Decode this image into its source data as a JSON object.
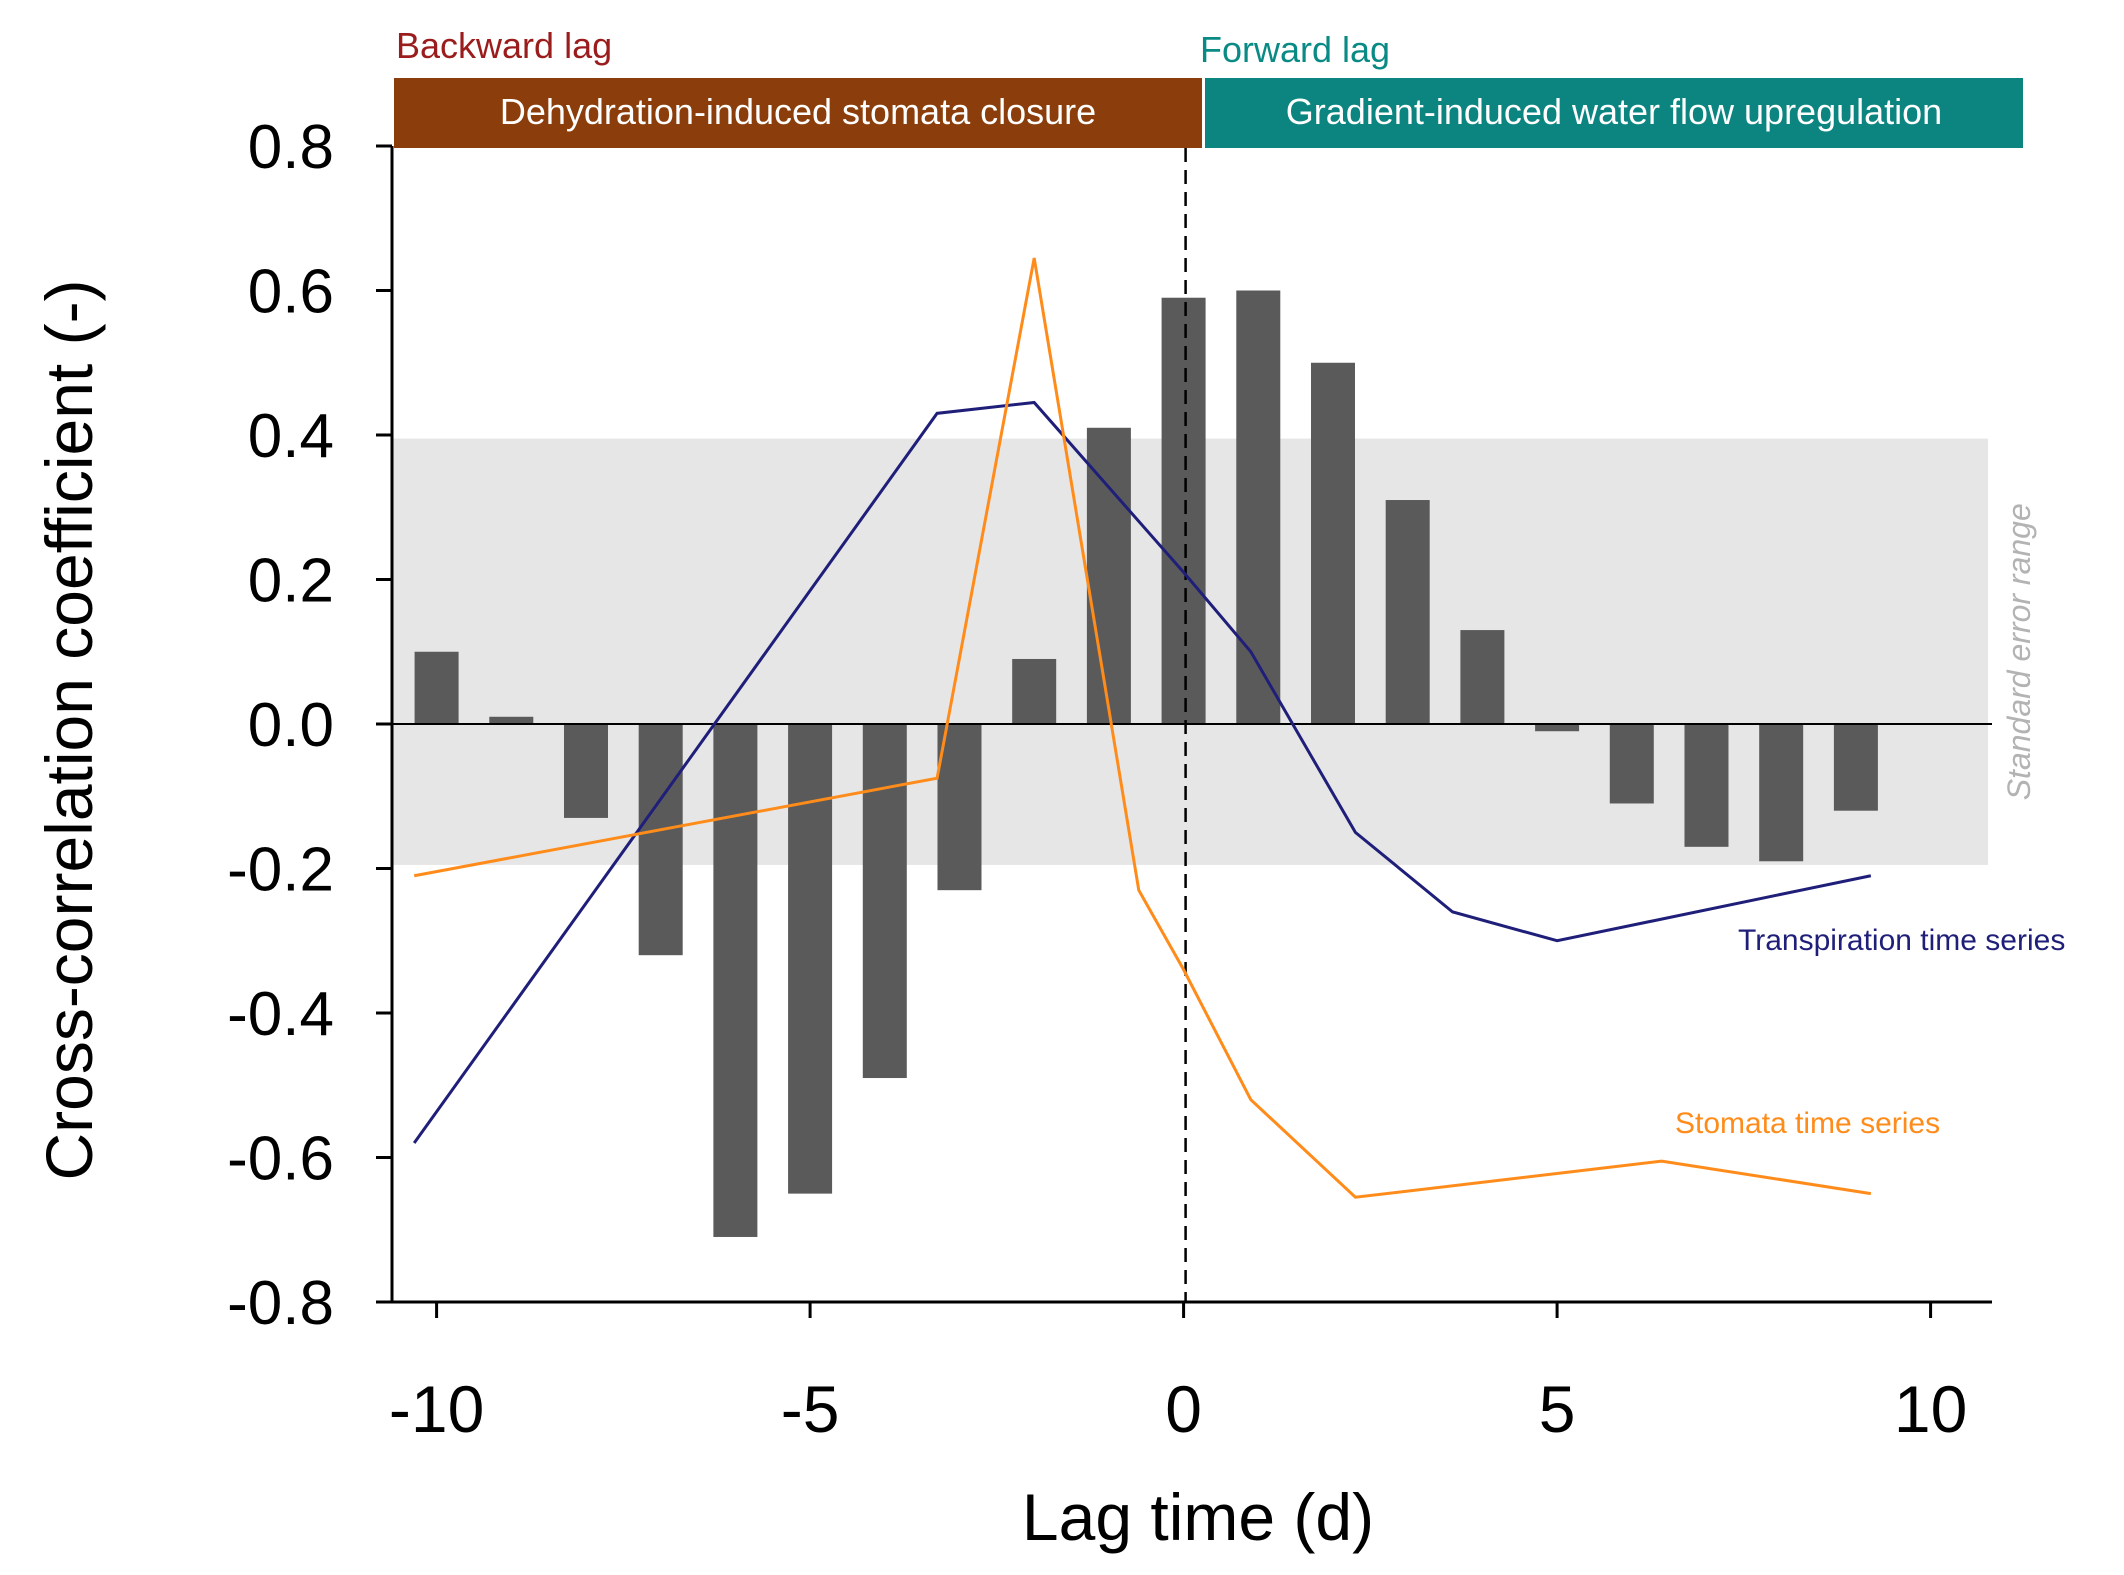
{
  "chart_data": {
    "type": "bar",
    "xlabel": "Lag time (d)",
    "ylabel": "Cross-correlation coefficient (-)",
    "xlim": [
      -11,
      10.5
    ],
    "ylim": [
      -0.8,
      0.8
    ],
    "x_ticks": [
      -10,
      -5,
      0,
      5,
      10
    ],
    "y_ticks": [
      0.8,
      0.6,
      0.4,
      0.2,
      0.0,
      -0.2,
      -0.4,
      -0.6,
      -0.8
    ],
    "y_tick_labels": [
      "0.8",
      "0.6",
      "0.4",
      "0.2",
      "0.0",
      "-0.2",
      "-0.4",
      "-0.6",
      "-0.8"
    ],
    "bars": {
      "name": "Cross-correlation",
      "color": "#5a5a5a",
      "x": [
        -10,
        -9,
        -8,
        -7,
        -6,
        -5,
        -4,
        -3,
        -2,
        -1,
        0,
        1,
        2,
        3,
        4,
        5,
        6,
        7,
        8,
        9
      ],
      "values": [
        0.1,
        0.01,
        -0.13,
        -0.32,
        -0.71,
        -0.65,
        -0.49,
        -0.23,
        0.09,
        0.41,
        0.59,
        0.6,
        0.5,
        0.31,
        0.13,
        -0.01,
        -0.11,
        -0.17,
        -0.19,
        -0.12
      ]
    },
    "series": [
      {
        "name": "Transpiration time series",
        "color": "#1f1f7a",
        "x": [
          -10.3,
          -3.3,
          -2.0,
          0.0,
          0.9,
          2.3,
          3.6,
          5.0,
          9.2
        ],
        "values": [
          -0.58,
          0.43,
          0.445,
          0.21,
          0.1,
          -0.15,
          -0.26,
          -0.3,
          -0.21
        ]
      },
      {
        "name": "Stomata time series",
        "color": "#ff8c1a",
        "x": [
          -10.3,
          -3.3,
          -2.0,
          -0.6,
          0.0,
          0.9,
          2.3,
          6.4,
          9.2
        ],
        "values": [
          -0.21,
          -0.075,
          0.645,
          -0.23,
          -0.34,
          -0.52,
          -0.655,
          -0.605,
          -0.65
        ]
      }
    ],
    "standard_error_band": {
      "label": "Standard error range",
      "y_min": -0.195,
      "y_max": 0.395,
      "color": "#e6e6e6"
    },
    "zero_line_x": 0,
    "annotations": {
      "backward": {
        "title": "Backward lag",
        "box": "Dehydration-induced stomata closure",
        "title_color": "#9b1c1c",
        "box_color": "#8b3e0b"
      },
      "forward": {
        "title": "Forward lag",
        "box": "Gradient-induced water flow upregulation",
        "title_color": "#0a8a85",
        "box_color": "#0c8580"
      }
    }
  }
}
